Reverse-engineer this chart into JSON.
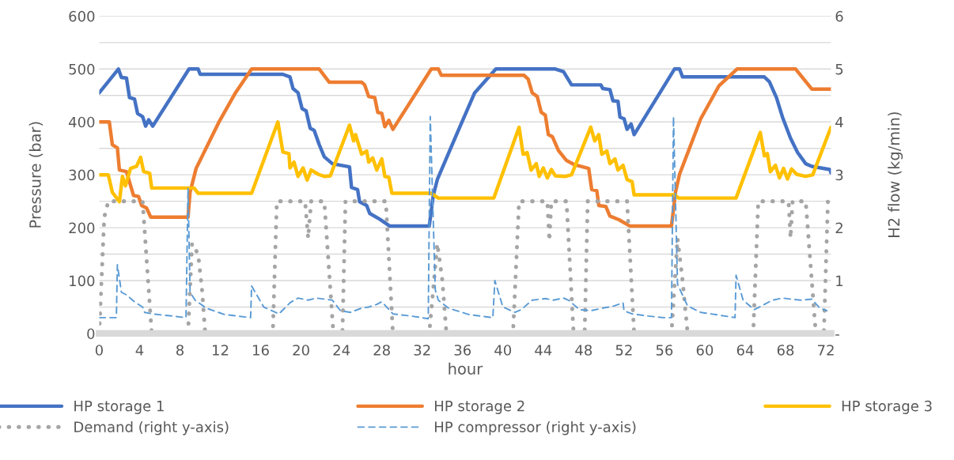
{
  "chart_data": {
    "type": "line",
    "xlabel": "hour",
    "ylabel": "Pressure (bar)",
    "y2label": "H2 flow (kg/min)",
    "xlim": [
      0,
      72.5
    ],
    "xticks": [
      0,
      4,
      8,
      12,
      16,
      20,
      24,
      28,
      32,
      36,
      40,
      44,
      48,
      52,
      56,
      60,
      64,
      68,
      72
    ],
    "ylim": [
      0,
      600
    ],
    "yticks": [
      0,
      {
        "value": 50,
        "label": null
      },
      100,
      {
        "value": 150,
        "label": null
      },
      200,
      {
        "value": 250,
        "label": null
      },
      300,
      {
        "value": 350,
        "label": null
      },
      400,
      {
        "value": 450,
        "label": null
      },
      500,
      {
        "value": 550,
        "label": null
      },
      600
    ],
    "y2lim": [
      0,
      6
    ],
    "y2ticks": [
      {
        "value": 0,
        "label": "-"
      },
      1,
      2,
      3,
      4,
      5,
      6
    ],
    "grid": "y",
    "legend": "bottom",
    "series": [
      {
        "name": "HP storage 1",
        "color": "#4472c4",
        "line_style": "solid",
        "x": [
          0,
          1.9,
          2.2,
          2.7,
          3.0,
          3.5,
          3.8,
          4.3,
          4.6,
          4.9,
          5.3,
          8.9,
          9.8,
          10.0,
          18.2,
          18.9,
          19.2,
          19.7,
          20.1,
          20.5,
          20.9,
          21.3,
          21.8,
          22.3,
          23.1,
          24.8,
          25.0,
          25.6,
          25.8,
          26.5,
          26.8,
          27.8,
          28.8,
          32.7,
          33.1,
          33.5,
          35.4,
          37.2,
          39.3,
          45.2,
          46.0,
          46.8,
          49.7,
          49.9,
          50.6,
          50.9,
          51.4,
          51.6,
          52.0,
          52.3,
          52.7,
          53.0,
          57.0,
          57.5,
          57.8,
          65.9,
          66.4,
          67.1,
          67.7,
          68.5,
          69.2,
          70.0,
          70.6,
          72.4,
          72.5
        ],
        "values": [
          455,
          500,
          484,
          483,
          446,
          443,
          416,
          410,
          392,
          404,
          392,
          500,
          500,
          490,
          490,
          485,
          463,
          455,
          425,
          421,
          388,
          384,
          357,
          334,
          321,
          315,
          276,
          272,
          249,
          242,
          227,
          216,
          203,
          203,
          261,
          291,
          376,
          455,
          500,
          500,
          495,
          470,
          470,
          463,
          461,
          440,
          439,
          409,
          406,
          386,
          396,
          376,
          500,
          500,
          485,
          485,
          476,
          446,
          409,
          369,
          342,
          321,
          316,
          310,
          304
        ]
      },
      {
        "name": "HP storage 2",
        "color": "#ed7d31",
        "line_style": "solid",
        "x": [
          0,
          1.0,
          1.3,
          1.8,
          2.0,
          2.7,
          3.4,
          3.9,
          4.2,
          4.7,
          5.1,
          8.8,
          9.0,
          9.6,
          11.9,
          13.5,
          15.1,
          21.8,
          22.8,
          26.0,
          26.3,
          26.7,
          27.3,
          27.6,
          28.0,
          28.3,
          28.7,
          29.1,
          32.9,
          33.6,
          33.9,
          42.1,
          42.5,
          42.9,
          43.4,
          43.8,
          44.2,
          44.5,
          44.9,
          45.5,
          46.3,
          47.1,
          48.5,
          48.8,
          49.3,
          49.5,
          50.2,
          50.6,
          51.5,
          52.6,
          56.7,
          57.1,
          57.5,
          59.6,
          61.4,
          63.2,
          69.0,
          70.6,
          72.5
        ],
        "values": [
          400,
          400,
          357,
          351,
          309,
          306,
          261,
          259,
          242,
          237,
          220,
          220,
          267,
          312,
          401,
          455,
          500,
          500,
          475,
          475,
          470,
          448,
          446,
          418,
          416,
          391,
          403,
          386,
          500,
          500,
          488,
          488,
          481,
          455,
          448,
          418,
          413,
          376,
          372,
          346,
          327,
          319,
          312,
          272,
          270,
          242,
          240,
          222,
          215,
          203,
          203,
          267,
          301,
          406,
          468,
          500,
          500,
          462,
          462
        ]
      },
      {
        "name": "HP storage 3",
        "color": "#ffc000",
        "line_style": "solid",
        "x": [
          0,
          0.9,
          1.3,
          2.0,
          2.3,
          2.6,
          3.1,
          3.7,
          4.1,
          4.4,
          5.0,
          5.2,
          9.4,
          9.8,
          15.1,
          17.7,
          18.2,
          18.8,
          18.9,
          19.3,
          19.7,
          20.2,
          20.6,
          21.0,
          21.7,
          22.3,
          22.9,
          24.8,
          25.2,
          25.4,
          26.0,
          26.5,
          26.7,
          27.1,
          27.5,
          28.0,
          28.3,
          28.7,
          29.0,
          32.9,
          33.6,
          39.1,
          41.6,
          42.0,
          42.4,
          42.8,
          43.3,
          43.6,
          44.0,
          44.4,
          44.8,
          45.2,
          46.2,
          46.8,
          48.7,
          49.1,
          49.5,
          49.8,
          50.3,
          50.6,
          51.1,
          51.4,
          51.9,
          52.3,
          52.8,
          53.0,
          57.0,
          57.4,
          63.1,
          65.5,
          65.9,
          66.2,
          66.5,
          67.0,
          67.4,
          67.8,
          68.2,
          68.6,
          69.1,
          70.0,
          70.7,
          72.5
        ],
        "values": [
          300,
          300,
          267,
          249,
          297,
          279,
          312,
          316,
          333,
          306,
          303,
          275,
          275,
          265,
          265,
          400,
          343,
          340,
          313,
          324,
          297,
          313,
          290,
          309,
          301,
          297,
          298,
          394,
          364,
          376,
          339,
          345,
          324,
          332,
          309,
          330,
          297,
          295,
          265,
          265,
          256,
          256,
          390,
          339,
          342,
          309,
          321,
          297,
          313,
          294,
          310,
          298,
          297,
          300,
          390,
          364,
          376,
          339,
          345,
          321,
          330,
          309,
          318,
          291,
          287,
          262,
          262,
          256,
          256,
          380,
          336,
          340,
          306,
          318,
          294,
          312,
          292,
          311,
          301,
          297,
          300,
          390
        ]
      },
      {
        "name": "Demand (right y-axis)",
        "color": "#a5a5a5",
        "line_style": "dotted",
        "axis": "y2",
        "x": [
          0,
          0.5,
          0.9,
          4.3,
          5.2,
          8.8,
          9.2,
          9.8,
          10.2,
          10.5,
          17.2,
          17.6,
          20.4,
          20.7,
          21.0,
          22.3,
          23.2,
          24.1,
          24.4,
          28.4,
          29.1,
          32.7,
          33.5,
          34.0,
          34.4,
          41.0,
          41.6,
          44.4,
          44.6,
          44.8,
          46.3,
          47.0,
          48.1,
          48.4,
          52.3,
          53.0,
          56.7,
          57.3,
          57.8,
          58.3,
          64.8,
          65.3,
          68.3,
          68.5,
          68.7,
          70.0,
          71.0,
          71.8,
          72.2,
          72.5
        ],
        "values": [
          0,
          2.2,
          2.5,
          2.5,
          0,
          0,
          1.7,
          1.5,
          0.8,
          0,
          0,
          2.5,
          2.5,
          1.8,
          2.5,
          2.5,
          0,
          0,
          2.5,
          2.5,
          0,
          0,
          1.7,
          1.0,
          0,
          0,
          2.5,
          2.5,
          1.75,
          2.5,
          2.5,
          0,
          0,
          2.5,
          2.5,
          0,
          0,
          1.8,
          1.0,
          0,
          0,
          2.5,
          2.5,
          1.8,
          2.5,
          2.5,
          0,
          0,
          2.5,
          2.5
        ]
      },
      {
        "name": "HP compressor (right y-axis)",
        "color": "#5b9bd5",
        "line_style": "dashed",
        "axis": "y2",
        "x": [
          0,
          1.7,
          1.8,
          2.2,
          2.7,
          3.5,
          4.3,
          4.5,
          5.3,
          7.2,
          8.6,
          8.8,
          9.0,
          9.5,
          10.6,
          12.4,
          15.0,
          15.1,
          16.3,
          17.8,
          18.9,
          19.7,
          20.7,
          21.5,
          22.3,
          23.1,
          23.9,
          24.9,
          26.0,
          26.7,
          27.5,
          28.0,
          29.1,
          30.9,
          32.6,
          32.8,
          33.3,
          33.6,
          34.6,
          36.6,
          39.0,
          39.2,
          40.0,
          41.2,
          41.8,
          42.9,
          44.2,
          45.0,
          46.0,
          46.5,
          47.6,
          48.7,
          49.9,
          51.0,
          51.9,
          52.0,
          52.8,
          54.4,
          55.9,
          56.7,
          56.9,
          57.3,
          58.3,
          59.6,
          63.0,
          63.1,
          63.8,
          64.9,
          66.7,
          67.7,
          68.5,
          69.5,
          70.6,
          71.4,
          72.1
        ],
        "values": [
          0.3,
          0.3,
          1.3,
          0.78,
          0.73,
          0.6,
          0.5,
          0.4,
          0.37,
          0.33,
          0.3,
          2.75,
          0.78,
          0.63,
          0.48,
          0.36,
          0.3,
          0.9,
          0.5,
          0.37,
          0.58,
          0.67,
          0.63,
          0.67,
          0.65,
          0.63,
          0.43,
          0.4,
          0.48,
          0.5,
          0.55,
          0.6,
          0.37,
          0.33,
          0.28,
          4.1,
          0.82,
          0.63,
          0.48,
          0.36,
          0.3,
          1.0,
          0.5,
          0.4,
          0.45,
          0.63,
          0.66,
          0.63,
          0.67,
          0.63,
          0.45,
          0.43,
          0.48,
          0.52,
          0.58,
          0.43,
          0.37,
          0.33,
          0.3,
          0.3,
          4.1,
          0.93,
          0.52,
          0.4,
          0.3,
          1.1,
          0.63,
          0.45,
          0.63,
          0.67,
          0.65,
          0.63,
          0.65,
          0.48,
          0.43
        ]
      }
    ]
  }
}
